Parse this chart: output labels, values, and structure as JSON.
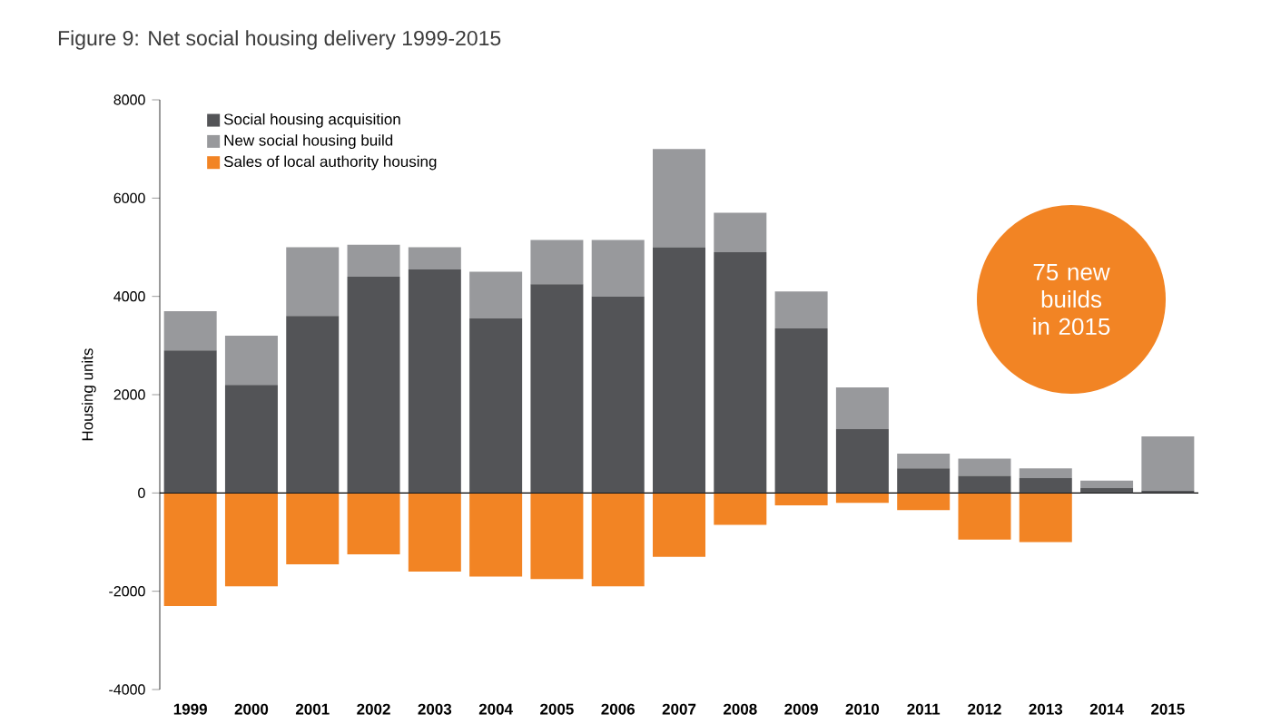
{
  "chart_data": {
    "type": "bar",
    "title": "Figure 9: Net social housing delivery 1999-2015",
    "ylabel": "Housing units",
    "categories": [
      "1999",
      "2000",
      "2001",
      "2002",
      "2003",
      "2004",
      "2005",
      "2006",
      "2007",
      "2008",
      "2009",
      "2010",
      "2011",
      "2012",
      "2013",
      "2014",
      "2015"
    ],
    "series": [
      {
        "name": "Social housing acquisition",
        "color": "#535457",
        "values": [
          2900,
          2200,
          3600,
          4400,
          4550,
          3550,
          4250,
          4000,
          5000,
          4900,
          3350,
          1300,
          500,
          350,
          300,
          100,
          50
        ]
      },
      {
        "name": "New social housing build",
        "color": "#98999c",
        "values": [
          800,
          1000,
          1400,
          650,
          450,
          950,
          900,
          1150,
          2000,
          800,
          750,
          850,
          300,
          350,
          200,
          150,
          1100
        ]
      },
      {
        "name": "Sales of local authority housing",
        "color": "#f28424",
        "values": [
          -2300,
          -1900,
          -1450,
          -1250,
          -1600,
          -1700,
          -1750,
          -1900,
          -1300,
          -650,
          -250,
          -200,
          -350,
          -950,
          -1000,
          0,
          0
        ]
      }
    ],
    "stacked": true,
    "ylim": [
      -4000,
      8000
    ],
    "yticks": [
      -4000,
      -2000,
      0,
      2000,
      4000,
      6000,
      8000
    ],
    "legend": "top left",
    "annotations": [
      "75 new builds in 2015"
    ]
  }
}
